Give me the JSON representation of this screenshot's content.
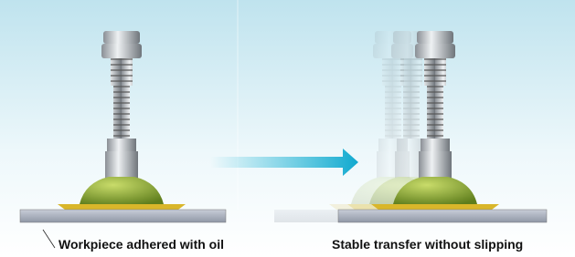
{
  "captions": {
    "left": "Workpiece adhered with oil",
    "right": "Stable transfer without slipping"
  }
}
